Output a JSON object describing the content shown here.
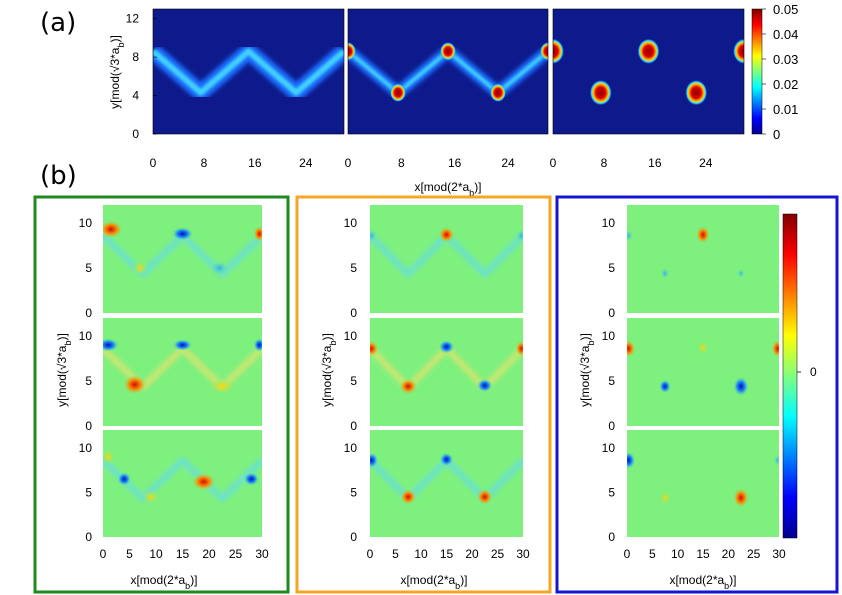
{
  "labels": {
    "a": "(a)",
    "b": "(b)"
  },
  "colors": {
    "green_frame": "#1f8a1f",
    "orange_frame": "#f5a623",
    "blue_frame": "#1414d4",
    "heat_background": "#0e1a8c",
    "diff_background": "#7ef07e"
  },
  "chart_data": [
    {
      "type": "heatmap",
      "panel": "a",
      "title": "",
      "subplots": 3,
      "xlabel": "x[mod(2*a_b)]",
      "xlabel_main": "x[mod(2*a",
      "xlabel_sub": "b",
      "xlabel_end": ")]",
      "ylabel_main": "y[mod(√3*a",
      "ylabel_sub": "b",
      "ylabel_end": ")]",
      "xlim": [
        0,
        30
      ],
      "ylim": [
        0,
        13
      ],
      "x_ticks": [
        "0",
        "8",
        "16",
        "24"
      ],
      "x_tick_values": [
        0,
        8,
        16,
        24
      ],
      "y_ticks": [
        "0",
        "4",
        "8",
        "12"
      ],
      "y_tick_values": [
        0,
        4,
        8,
        12
      ],
      "colorbar_ticks": [
        "0",
        "0.01",
        "0.02",
        "0.03",
        "0.04",
        "0.05"
      ],
      "colorbar_values": [
        0,
        0.01,
        0.02,
        0.03,
        0.04,
        0.05
      ],
      "zigzag_path": [
        [
          0,
          8.6
        ],
        [
          7.5,
          4.3
        ],
        [
          15,
          8.6
        ],
        [
          22.5,
          4.3
        ],
        [
          30,
          8.6
        ]
      ],
      "peaks": [
        {
          "x": 0,
          "y": 8.6
        },
        {
          "x": 7.5,
          "y": 4.3
        },
        {
          "x": 15,
          "y": 8.6
        },
        {
          "x": 22.5,
          "y": 4.3
        },
        {
          "x": 30,
          "y": 8.6
        }
      ]
    },
    {
      "type": "heatmap",
      "panel": "b",
      "title": "",
      "columns": 3,
      "rows": 3,
      "xlabel": "x[mod(2*a_b)]",
      "xlim": [
        0,
        30
      ],
      "ylim": [
        0,
        12
      ],
      "x_ticks": [
        "0",
        "5",
        "10",
        "15",
        "20",
        "25",
        "30"
      ],
      "x_tick_values": [
        0,
        5,
        10,
        15,
        20,
        25,
        30
      ],
      "y_ticks": [
        "0",
        "5",
        "10"
      ],
      "y_tick_values": [
        0,
        5,
        10
      ],
      "colorbar_label": "0",
      "frames": [
        "green",
        "orange",
        "blue"
      ]
    }
  ]
}
